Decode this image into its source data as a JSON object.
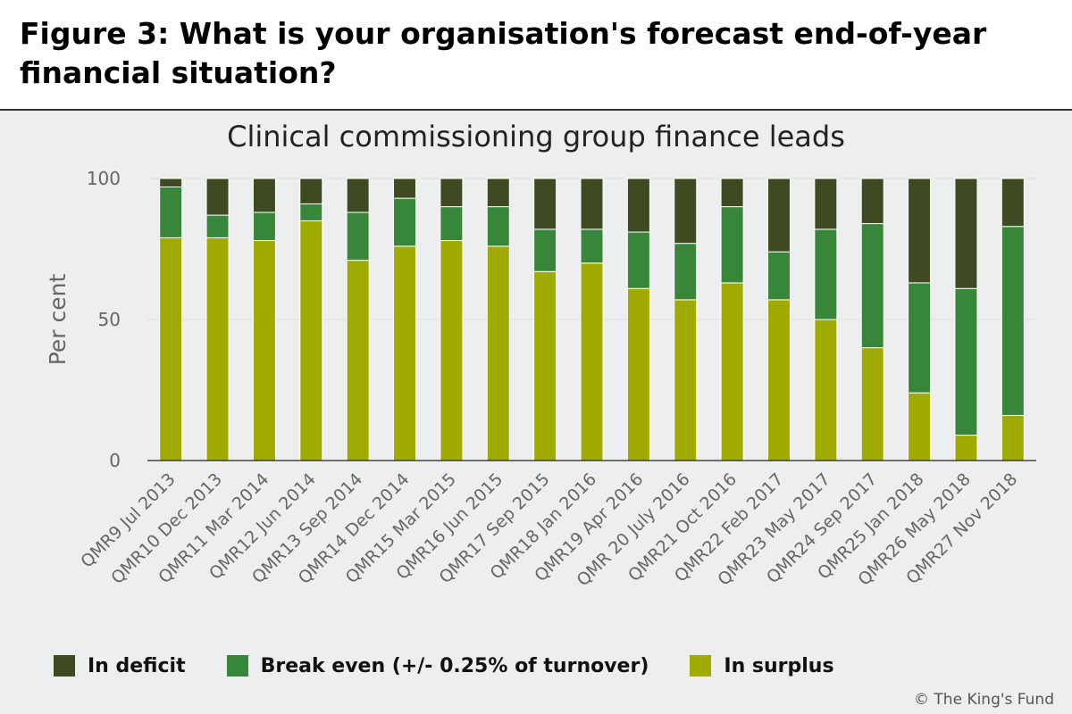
{
  "figure_title": "Figure 3: What is your organisation's forecast end-of-year financial situation?",
  "copyright": "© The King's Fund",
  "colors": {
    "deficit": "#3e4a22",
    "break_even": "#37863a",
    "surplus": "#9fab00",
    "background": "#eceef0",
    "grid": "#dcdee0",
    "axis": "#222222",
    "tick_text": "#666666"
  },
  "chart_data": {
    "type": "bar",
    "stacked": true,
    "title": "Clinical commissioning group finance leads",
    "xlabel": "",
    "ylabel": "Per cent",
    "ylim": [
      0,
      100
    ],
    "yticks": [
      0,
      50,
      100
    ],
    "legend_position": "bottom",
    "categories": [
      "QMR9 Jul 2013",
      "QMR10 Dec 2013",
      "QMR11 Mar 2014",
      "QMR12 Jun 2014",
      "QMR13 Sep 2014",
      "QMR14 Dec 2014",
      "QMR15 Mar 2015",
      "QMR16 Jun 2015",
      "QMR17 Sep 2015",
      "QMR18 Jan 2016",
      "QMR19 Apr 2016",
      "QMR 20 July 2016",
      "QMR21 Oct 2016",
      "QMR22 Feb 2017",
      "QMR23 May 2017",
      "QMR24 Sep 2017",
      "QMR25 Jan 2018",
      "QMR26 May 2018",
      "QMR27 Nov 2018"
    ],
    "series": [
      {
        "key": "surplus",
        "name": "In surplus",
        "values": [
          79,
          79,
          78,
          85,
          71,
          76,
          78,
          76,
          67,
          70,
          61,
          57,
          63,
          57,
          50,
          40,
          24,
          9,
          16
        ]
      },
      {
        "key": "break_even",
        "name": "Break even (+/- 0.25% of turnover)",
        "values": [
          18,
          8,
          10,
          6,
          17,
          17,
          12,
          14,
          15,
          12,
          20,
          20,
          27,
          17,
          32,
          44,
          39,
          52,
          67
        ]
      },
      {
        "key": "deficit",
        "name": "In deficit",
        "values": [
          3,
          13,
          12,
          9,
          12,
          7,
          10,
          10,
          18,
          18,
          19,
          23,
          10,
          26,
          18,
          16,
          37,
          39,
          17
        ]
      }
    ],
    "legend_order": [
      "deficit",
      "break_even",
      "surplus"
    ]
  }
}
